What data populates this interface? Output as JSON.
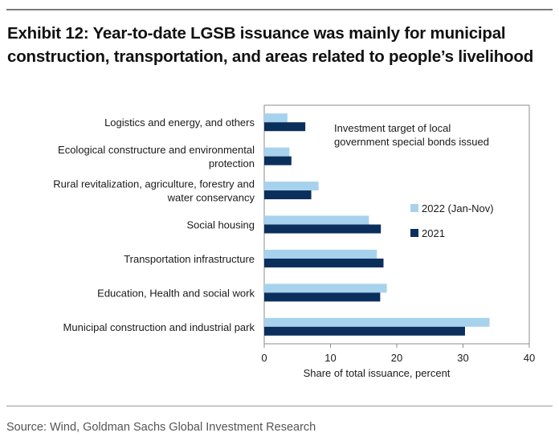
{
  "header": {
    "title_line1": "Exhibit 12: Year-to-date LGSB issuance was mainly for municipal",
    "title_line2": "construction, transportation, and areas related to people’s livelihood"
  },
  "footer": {
    "source": "Source: Wind, Goldman Sachs Global Investment Research"
  },
  "chart_data": {
    "type": "bar",
    "orientation": "horizontal",
    "title": "Exhibit 12: Year-to-date LGSB issuance was mainly for municipal construction, transportation, and areas related to people’s livelihood",
    "annotation": [
      "Investment target of local",
      "government special bonds issued"
    ],
    "categories": [
      [
        "Logistics and energy, and others"
      ],
      [
        "Ecological constructure and environmental",
        "protection"
      ],
      [
        "Rural revitalization, agriculture, forestry and",
        "water conservancy"
      ],
      [
        "Social housing"
      ],
      [
        "Transportation infrastructure"
      ],
      [
        "Education, Health and social work"
      ],
      [
        "Municipal construction and industrial park"
      ]
    ],
    "series": [
      {
        "name": "2022 (Jan-Nov)",
        "color": "#a7d2ee",
        "values": [
          3.5,
          3.8,
          8.2,
          15.8,
          17.0,
          18.5,
          34.0
        ]
      },
      {
        "name": "2021",
        "color": "#0b2f5c",
        "values": [
          6.2,
          4.1,
          7.1,
          17.6,
          18.0,
          17.5,
          30.3
        ]
      }
    ],
    "xlabel": "Share of total issuance, percent",
    "ylabel": "",
    "xlim": [
      0,
      40
    ],
    "xticks": [
      0,
      10,
      20,
      30,
      40
    ],
    "grid": false,
    "legend_position": "right"
  }
}
